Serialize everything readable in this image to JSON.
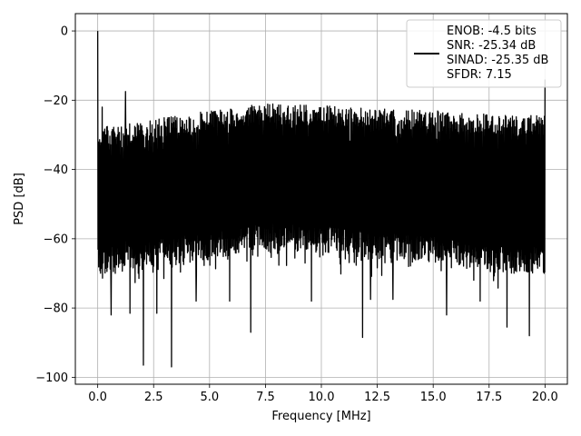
{
  "chart_data": {
    "type": "line",
    "xlabel": "Frequency [MHz]",
    "ylabel": "PSD [dB]",
    "xlim": [
      -1.0,
      21.0
    ],
    "ylim": [
      -102,
      5
    ],
    "xticks": [
      0.0,
      2.5,
      5.0,
      7.5,
      10.0,
      12.5,
      15.0,
      17.5,
      20.0
    ],
    "xtick_labels": [
      "0.0",
      "2.5",
      "5.0",
      "7.5",
      "10.0",
      "12.5",
      "15.0",
      "17.5",
      "20.0"
    ],
    "yticks": [
      0,
      -20,
      -40,
      -60,
      -80,
      -100
    ],
    "ytick_labels": [
      "0",
      "−20",
      "−40",
      "−60",
      "−80",
      "−100"
    ],
    "grid": true,
    "legend_position": "top-right",
    "series": [
      {
        "name": "ENOB: -4.5 bits\nSNR: -25.34 dB\nSINAD: -25.35 dB\nSFDR: 7.15",
        "color": "#000000",
        "x_range": [
          0.0,
          20.0
        ],
        "peaks": [
          {
            "x": 0.0,
            "y": 0
          },
          {
            "x": 0.2,
            "y": -22
          },
          {
            "x": 1.25,
            "y": -17.5
          },
          {
            "x": 20.0,
            "y": -14
          }
        ],
        "upper_envelope": [
          {
            "x": 0.0,
            "y": -28
          },
          {
            "x": 2.5,
            "y": -25.5
          },
          {
            "x": 5.0,
            "y": -23
          },
          {
            "x": 7.5,
            "y": -21
          },
          {
            "x": 10.0,
            "y": -21.5
          },
          {
            "x": 12.5,
            "y": -22.5
          },
          {
            "x": 15.0,
            "y": -23
          },
          {
            "x": 17.5,
            "y": -24
          },
          {
            "x": 20.0,
            "y": -24.5
          }
        ],
        "lower_envelope": [
          {
            "x": 0.0,
            "y": -71
          },
          {
            "x": 2.5,
            "y": -68
          },
          {
            "x": 5.0,
            "y": -66
          },
          {
            "x": 7.5,
            "y": -63
          },
          {
            "x": 10.0,
            "y": -64
          },
          {
            "x": 12.5,
            "y": -66
          },
          {
            "x": 15.0,
            "y": -67
          },
          {
            "x": 17.5,
            "y": -70
          },
          {
            "x": 20.0,
            "y": -70
          }
        ],
        "dips": [
          {
            "x": 0.6,
            "y": -82
          },
          {
            "x": 1.45,
            "y": -81.5
          },
          {
            "x": 2.05,
            "y": -96.5
          },
          {
            "x": 2.65,
            "y": -81.5
          },
          {
            "x": 3.3,
            "y": -97
          },
          {
            "x": 4.4,
            "y": -78
          },
          {
            "x": 5.9,
            "y": -78
          },
          {
            "x": 6.85,
            "y": -87
          },
          {
            "x": 9.55,
            "y": -78
          },
          {
            "x": 11.85,
            "y": -88.5
          },
          {
            "x": 12.2,
            "y": -77.5
          },
          {
            "x": 13.2,
            "y": -77.5
          },
          {
            "x": 15.6,
            "y": -82
          },
          {
            "x": 17.1,
            "y": -78
          },
          {
            "x": 18.3,
            "y": -85.5
          },
          {
            "x": 19.3,
            "y": -88
          }
        ]
      }
    ]
  }
}
